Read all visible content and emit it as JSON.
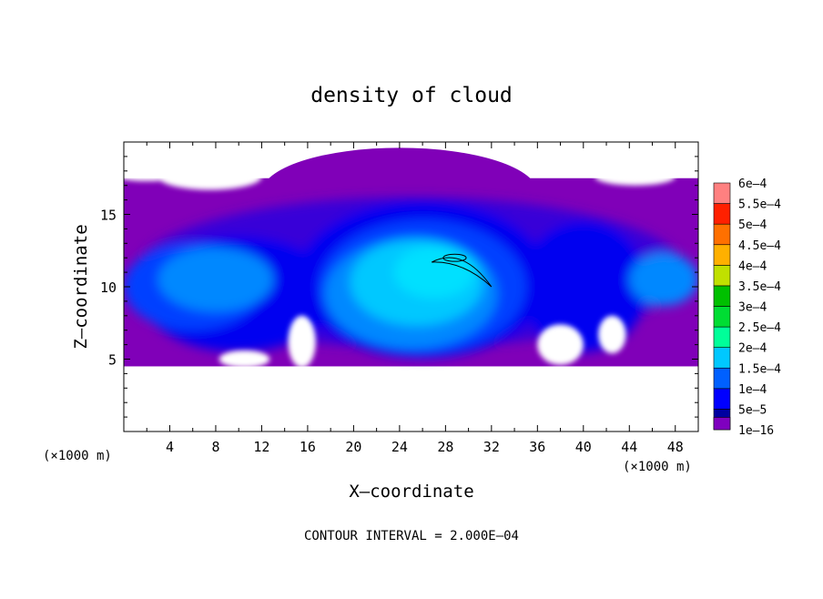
{
  "chart_data": {
    "type": "heatmap",
    "title": "density of cloud",
    "xlabel": "X–coordinate",
    "ylabel": "Z–coordinate",
    "x_unit_left": "(×1000 m)",
    "x_unit_right": "(×1000 m)",
    "xlim": [
      0,
      50
    ],
    "ylim": [
      0,
      20
    ],
    "x_ticks": [
      4,
      8,
      12,
      16,
      20,
      24,
      28,
      32,
      36,
      40,
      44,
      48
    ],
    "x_tick_labels": [
      "4",
      "8",
      "12",
      "16",
      "20",
      "24",
      "28",
      "32",
      "36",
      "40",
      "44",
      "48"
    ],
    "y_ticks": [
      5,
      10,
      15
    ],
    "y_tick_labels": [
      "5",
      "10",
      "15"
    ],
    "footer": "CONTOUR INTERVAL = 2.000E–04",
    "colorbar": {
      "labels": [
        "1e–16",
        "5e–5",
        "1e–4",
        "1.5e–4",
        "2e–4",
        "2.5e–4",
        "3e–4",
        "3.5e–4",
        "4e–4",
        "4.5e–4",
        "5e–4",
        "5.5e–4",
        "6e–4"
      ],
      "colors": [
        "#7f00bf",
        "#0000a0",
        "#0000ff",
        "#0060ff",
        "#00c8ff",
        "#00ff99",
        "#00dd33",
        "#00c000",
        "#c0e000",
        "#ffb000",
        "#ff7000",
        "#ff2000",
        "#ff8080"
      ]
    },
    "field_colors": {
      "c0": "#8000b8",
      "c1": "#3800d8",
      "c2": "#0000f0",
      "c3": "#0040ff",
      "c4": "#0088ff",
      "c5": "#00c8ff",
      "c6": "#00e0ff"
    },
    "cloud_layer_z": [
      4.5,
      17.5
    ],
    "contour_level_z": [
      11,
      12
    ]
  }
}
